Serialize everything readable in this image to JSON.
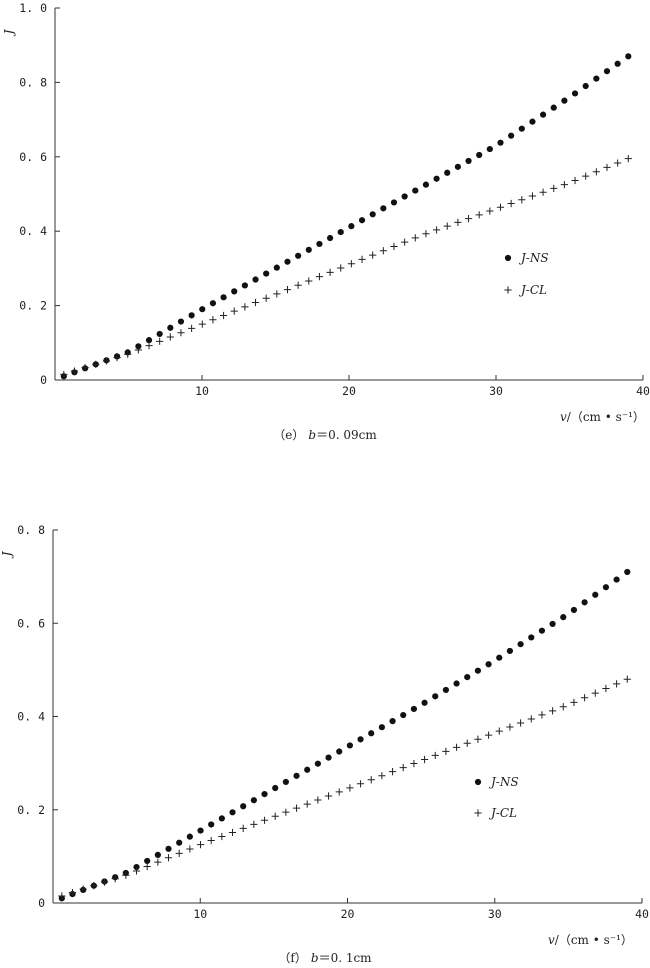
{
  "chart_data": [
    {
      "type": "scatter",
      "panel": "(e)",
      "caption": "（e） b＝0. 09cm",
      "caption_parts": {
        "prefix": "（e）",
        "var": "b",
        "value": "＝0. 09cm"
      },
      "ylabel": "J",
      "xlabel": {
        "var": "v",
        "unit": "/（cm • s⁻¹）"
      },
      "xlim": [
        0,
        40
      ],
      "ylim": [
        0,
        1.0
      ],
      "x_ticks": [
        10,
        20,
        30,
        40
      ],
      "x_tick_labels": [
        "10",
        "20",
        "30",
        "40"
      ],
      "y_ticks": [
        0,
        0.2,
        0.4,
        0.6,
        0.8,
        1.0
      ],
      "y_tick_labels": [
        "0",
        "0. 2",
        "0. 4",
        "0. 6",
        "0. 8",
        "1. 0"
      ],
      "grid": false,
      "legend_placement": "center-right",
      "x": {
        "start": 0.6,
        "end": 39.0,
        "count": 54
      },
      "series": [
        {
          "name": "J-NS",
          "marker": "dot",
          "values_at": {
            "x": [
              0.6,
              5,
              10,
              15,
              20,
              25,
              30,
              35,
              39
            ]
          },
          "y_at": [
            0.01,
            0.075,
            0.19,
            0.3,
            0.41,
            0.52,
            0.63,
            0.76,
            0.87
          ]
        },
        {
          "name": "J-CL",
          "marker": "plus",
          "values_at": {
            "x": [
              0.6,
              5,
              10,
              15,
              20,
              25,
              30,
              35,
              39
            ]
          },
          "y_at": [
            0.015,
            0.07,
            0.15,
            0.23,
            0.31,
            0.39,
            0.46,
            0.53,
            0.595
          ]
        }
      ]
    },
    {
      "type": "scatter",
      "panel": "(f)",
      "caption": "（f） b＝0. 1cm",
      "caption_parts": {
        "prefix": "（f）",
        "var": "b",
        "value": "＝0. 1cm"
      },
      "ylabel": "J",
      "xlabel": {
        "var": "v",
        "unit": "/（cm • s⁻¹）"
      },
      "xlim": [
        0,
        40
      ],
      "ylim": [
        0,
        0.8
      ],
      "x_ticks": [
        10,
        20,
        30,
        40
      ],
      "x_tick_labels": [
        "10",
        "20",
        "30",
        "40"
      ],
      "y_ticks": [
        0,
        0.2,
        0.4,
        0.6,
        0.8
      ],
      "y_tick_labels": [
        "0",
        "0. 2",
        "0. 4",
        "0. 6",
        "0. 8"
      ],
      "grid": false,
      "legend_placement": "center-right",
      "x": {
        "start": 0.6,
        "end": 39.0,
        "count": 54
      },
      "series": [
        {
          "name": "J-NS",
          "marker": "dot",
          "values_at": {
            "x": [
              0.6,
              5,
              10,
              15,
              20,
              25,
              30,
              35,
              39
            ]
          },
          "y_at": [
            0.01,
            0.065,
            0.155,
            0.245,
            0.335,
            0.425,
            0.52,
            0.62,
            0.71
          ]
        },
        {
          "name": "J-CL",
          "marker": "plus",
          "values_at": {
            "x": [
              0.6,
              5,
              10,
              15,
              20,
              25,
              30,
              35,
              39
            ]
          },
          "y_at": [
            0.015,
            0.06,
            0.125,
            0.185,
            0.245,
            0.305,
            0.365,
            0.425,
            0.48
          ]
        }
      ]
    }
  ]
}
